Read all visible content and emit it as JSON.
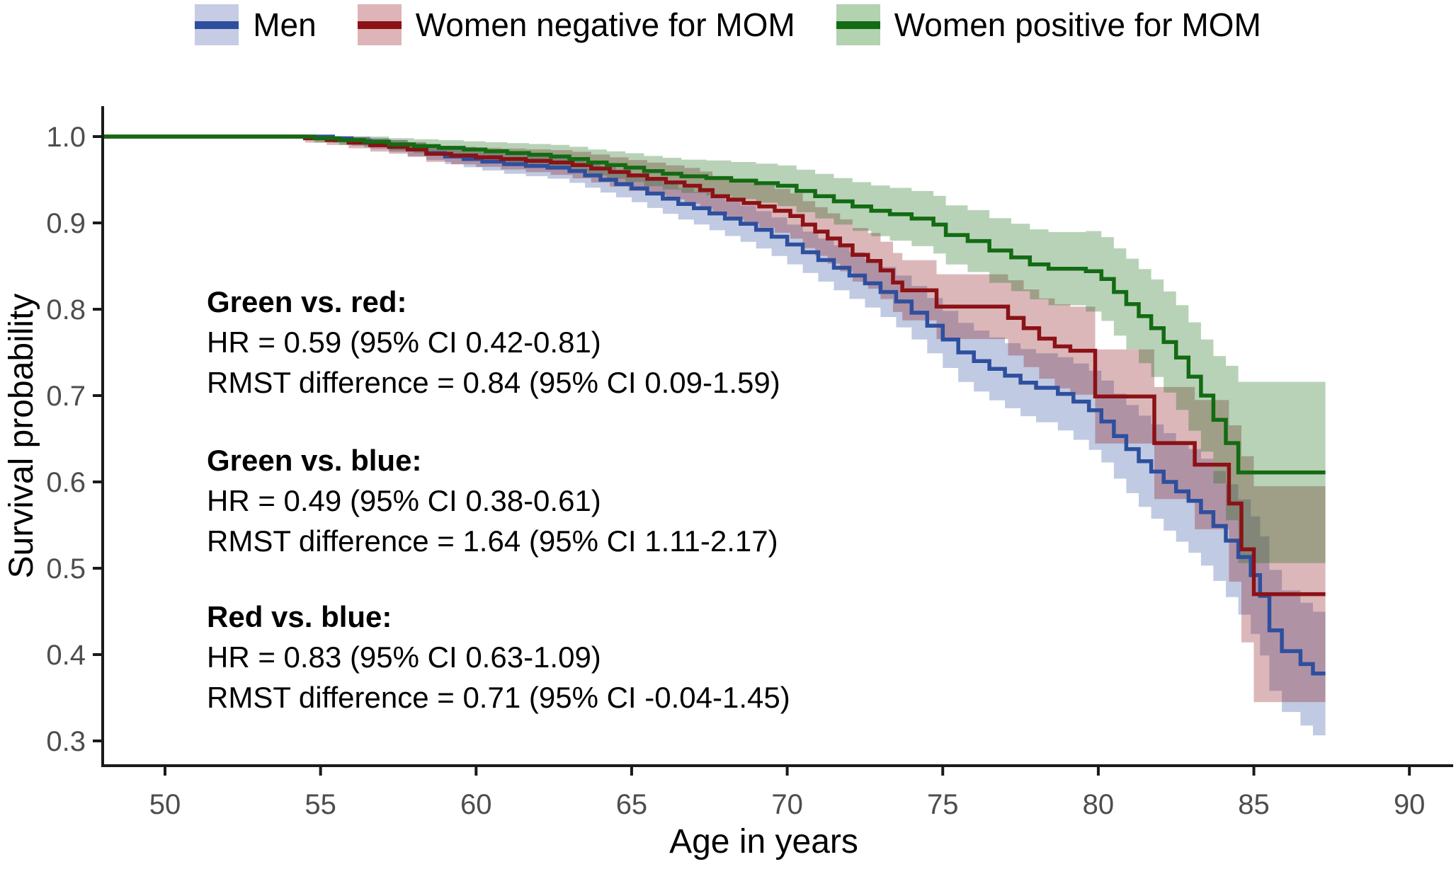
{
  "chart_data": {
    "type": "line",
    "subtype": "kaplan-meier-step-curves-with-ci-bands",
    "title": "",
    "xlabel": "Age in years",
    "ylabel": "Survival probability",
    "x_axis": {
      "ticks": [
        50,
        55,
        60,
        65,
        70,
        75,
        80,
        85,
        90
      ],
      "range": [
        48.0,
        91.5
      ]
    },
    "y_axis": {
      "tick_labels": [
        "1.0",
        "0.9",
        "0.8",
        "0.7",
        "0.6",
        "0.5",
        "0.4",
        "0.3"
      ],
      "tick_values": [
        1.0,
        0.9,
        0.8,
        0.7,
        0.6,
        0.5,
        0.4,
        0.3
      ],
      "range": [
        0.27,
        1.035
      ]
    },
    "grid": false,
    "legend_position": "top",
    "legend": [
      {
        "label": "Men",
        "line_color": "#2E4F9E",
        "band_color": "#C5CCE3"
      },
      {
        "label": "Women negative for MOM",
        "line_color": "#8B1216",
        "band_color": "#DDB4B7"
      },
      {
        "label": "Women positive for MOM",
        "line_color": "#136B13",
        "band_color": "#B2D2B0"
      }
    ],
    "series": [
      {
        "name": "Men",
        "line_color": "#2E4F9E",
        "points": [
          [
            48,
            1
          ],
          [
            55.4,
            0.998
          ],
          [
            56,
            0.995
          ],
          [
            56.6,
            0.992
          ],
          [
            57.2,
            0.989
          ],
          [
            57.8,
            0.985
          ],
          [
            58.4,
            0.981
          ],
          [
            59,
            0.977
          ],
          [
            59.6,
            0.974
          ],
          [
            60.2,
            0.971
          ],
          [
            60.9,
            0.968
          ],
          [
            61.6,
            0.966
          ],
          [
            62.3,
            0.964
          ],
          [
            63,
            0.96
          ],
          [
            63.5,
            0.955
          ],
          [
            64,
            0.95
          ],
          [
            64.5,
            0.945
          ],
          [
            65,
            0.94
          ],
          [
            65.5,
            0.934
          ],
          [
            66,
            0.928
          ],
          [
            66.5,
            0.922
          ],
          [
            67,
            0.917
          ],
          [
            67.5,
            0.911
          ],
          [
            68,
            0.905
          ],
          [
            68.5,
            0.899
          ],
          [
            69,
            0.892
          ],
          [
            69.5,
            0.884
          ],
          [
            70,
            0.875
          ],
          [
            70.5,
            0.866
          ],
          [
            71,
            0.857
          ],
          [
            71.5,
            0.848
          ],
          [
            72,
            0.839
          ],
          [
            72.5,
            0.83
          ],
          [
            73,
            0.82
          ],
          [
            73.5,
            0.809
          ],
          [
            74,
            0.796
          ],
          [
            74.5,
            0.781
          ],
          [
            75,
            0.765
          ],
          [
            75.5,
            0.75
          ],
          [
            76,
            0.74
          ],
          [
            76.5,
            0.731
          ],
          [
            77,
            0.723
          ],
          [
            77.5,
            0.715
          ],
          [
            78,
            0.709
          ],
          [
            78.7,
            0.702
          ],
          [
            79.2,
            0.693
          ],
          [
            79.7,
            0.683
          ],
          [
            80.1,
            0.67
          ],
          [
            80.5,
            0.653
          ],
          [
            80.9,
            0.638
          ],
          [
            81.3,
            0.624
          ],
          [
            81.7,
            0.612
          ],
          [
            82.1,
            0.6
          ],
          [
            82.5,
            0.589
          ],
          [
            82.9,
            0.578
          ],
          [
            83.3,
            0.565
          ],
          [
            83.7,
            0.549
          ],
          [
            84.1,
            0.532
          ],
          [
            84.5,
            0.513
          ],
          [
            84.9,
            0.492
          ],
          [
            85.2,
            0.468
          ],
          [
            85.5,
            0.428
          ],
          [
            85.9,
            0.404
          ],
          [
            86.5,
            0.389
          ],
          [
            86.9,
            0.378
          ],
          [
            87.3,
            0.378
          ]
        ],
        "ci_halfwidth": [
          [
            48,
            0
          ],
          [
            55.4,
            0.005
          ],
          [
            60,
            0.01
          ],
          [
            65,
            0.016
          ],
          [
            70,
            0.023
          ],
          [
            75,
            0.033
          ],
          [
            78,
            0.04
          ],
          [
            80,
            0.047
          ],
          [
            82,
            0.056
          ],
          [
            84,
            0.065
          ],
          [
            85.5,
            0.07
          ],
          [
            87.3,
            0.072
          ]
        ]
      },
      {
        "name": "Women negative for MOM",
        "line_color": "#8B1216",
        "points": [
          [
            48,
            1
          ],
          [
            54.5,
            0.998
          ],
          [
            55.2,
            0.996
          ],
          [
            55.9,
            0.993
          ],
          [
            56.6,
            0.99
          ],
          [
            57.2,
            0.988
          ],
          [
            57.8,
            0.985
          ],
          [
            58.4,
            0.98
          ],
          [
            59.2,
            0.978
          ],
          [
            60,
            0.976
          ],
          [
            60.8,
            0.974
          ],
          [
            61.6,
            0.972
          ],
          [
            62.4,
            0.97
          ],
          [
            63.1,
            0.967
          ],
          [
            63.7,
            0.963
          ],
          [
            64.3,
            0.959
          ],
          [
            64.9,
            0.955
          ],
          [
            65.5,
            0.951
          ],
          [
            66.1,
            0.947
          ],
          [
            66.7,
            0.943
          ],
          [
            67.2,
            0.938
          ],
          [
            67.6,
            0.931
          ],
          [
            68.1,
            0.927
          ],
          [
            68.6,
            0.923
          ],
          [
            69.1,
            0.919
          ],
          [
            69.6,
            0.914
          ],
          [
            70.1,
            0.908
          ],
          [
            70.5,
            0.898
          ],
          [
            70.9,
            0.89
          ],
          [
            71.3,
            0.882
          ],
          [
            71.7,
            0.874
          ],
          [
            72.1,
            0.863
          ],
          [
            72.6,
            0.856
          ],
          [
            73,
            0.845
          ],
          [
            73.4,
            0.831
          ],
          [
            73.7,
            0.822
          ],
          [
            74.8,
            0.803
          ],
          [
            77.1,
            0.79
          ],
          [
            77.6,
            0.778
          ],
          [
            78.1,
            0.766
          ],
          [
            78.6,
            0.757
          ],
          [
            79.1,
            0.752
          ],
          [
            79.9,
            0.699
          ],
          [
            81.8,
            0.645
          ],
          [
            83.1,
            0.62
          ],
          [
            84.2,
            0.575
          ],
          [
            84.6,
            0.522
          ],
          [
            85,
            0.47
          ],
          [
            87.3,
            0.47
          ]
        ],
        "ci_halfwidth": [
          [
            48,
            0
          ],
          [
            54.5,
            0.005
          ],
          [
            60,
            0.011
          ],
          [
            65,
            0.018
          ],
          [
            70,
            0.026
          ],
          [
            75,
            0.038
          ],
          [
            78,
            0.046
          ],
          [
            80,
            0.055
          ],
          [
            82,
            0.066
          ],
          [
            84,
            0.082
          ],
          [
            85,
            0.125
          ],
          [
            87.3,
            0.128
          ]
        ]
      },
      {
        "name": "Women positive for MOM",
        "line_color": "#136B13",
        "points": [
          [
            48,
            1
          ],
          [
            54.8,
            0.998
          ],
          [
            55.6,
            0.996
          ],
          [
            56.4,
            0.994
          ],
          [
            57.2,
            0.991
          ],
          [
            58,
            0.989
          ],
          [
            58.8,
            0.987
          ],
          [
            59.6,
            0.985
          ],
          [
            60.3,
            0.983
          ],
          [
            61,
            0.981
          ],
          [
            61.7,
            0.979
          ],
          [
            62.4,
            0.977
          ],
          [
            63,
            0.974
          ],
          [
            63.6,
            0.97
          ],
          [
            64.2,
            0.967
          ],
          [
            64.8,
            0.964
          ],
          [
            65.4,
            0.96
          ],
          [
            66,
            0.957
          ],
          [
            66.6,
            0.954
          ],
          [
            67.4,
            0.952
          ],
          [
            68.2,
            0.949
          ],
          [
            69,
            0.946
          ],
          [
            69.7,
            0.943
          ],
          [
            70.3,
            0.937
          ],
          [
            70.9,
            0.931
          ],
          [
            71.5,
            0.925
          ],
          [
            72.1,
            0.919
          ],
          [
            72.7,
            0.914
          ],
          [
            73.3,
            0.91
          ],
          [
            74,
            0.905
          ],
          [
            74.7,
            0.898
          ],
          [
            75.1,
            0.886
          ],
          [
            75.8,
            0.879
          ],
          [
            76.5,
            0.868
          ],
          [
            77.2,
            0.86
          ],
          [
            77.8,
            0.852
          ],
          [
            78.4,
            0.847
          ],
          [
            79.6,
            0.844
          ],
          [
            80.1,
            0.835
          ],
          [
            80.5,
            0.82
          ],
          [
            80.9,
            0.806
          ],
          [
            81.3,
            0.792
          ],
          [
            81.7,
            0.778
          ],
          [
            82.1,
            0.762
          ],
          [
            82.5,
            0.744
          ],
          [
            82.9,
            0.722
          ],
          [
            83.3,
            0.7
          ],
          [
            83.7,
            0.672
          ],
          [
            84.1,
            0.645
          ],
          [
            84.5,
            0.611
          ],
          [
            87.3,
            0.611
          ]
        ],
        "ci_halfwidth": [
          [
            48,
            0
          ],
          [
            55,
            0.005
          ],
          [
            60,
            0.01
          ],
          [
            65,
            0.017
          ],
          [
            70,
            0.024
          ],
          [
            75,
            0.034
          ],
          [
            78,
            0.041
          ],
          [
            80,
            0.048
          ],
          [
            82,
            0.058
          ],
          [
            83.5,
            0.066
          ],
          [
            84.5,
            0.105
          ],
          [
            87.3,
            0.108
          ]
        ]
      }
    ],
    "annotations": [
      {
        "title": "Green vs. red:",
        "hr": "HR = 0.59 (95% CI 0.42-0.81)",
        "rmst": "RMST difference = 0.84 (95% CI 0.09-1.59)"
      },
      {
        "title": "Green vs. blue:",
        "hr": "HR = 0.49 (95% CI 0.38-0.61)",
        "rmst": "RMST difference = 1.64 (95% CI 1.11-2.17)"
      },
      {
        "title": "Red vs. blue:",
        "hr": "HR = 0.83 (95% CI 0.63-1.09)",
        "rmst": "RMST difference = 0.71 (95% CI -0.04-1.45)"
      }
    ],
    "colors": {
      "axis_line": "#1a1a1a",
      "tick_label": "#4d4d4d",
      "axis_title": "#000000",
      "band_opacity": 0.3
    }
  }
}
